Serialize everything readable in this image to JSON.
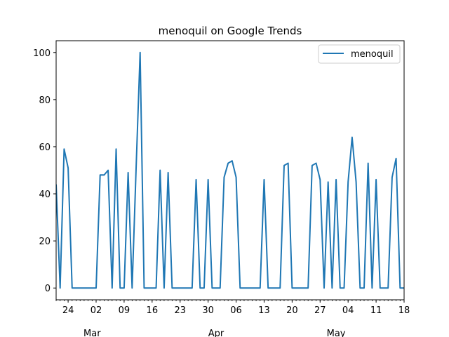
{
  "chart_data": {
    "type": "line",
    "title": "menoquil on Google Trends",
    "xlabel": "",
    "ylabel": "",
    "ylim": [
      -5,
      105
    ],
    "y_ticks": [
      0,
      20,
      40,
      60,
      80,
      100
    ],
    "x_day_ticks": [
      {
        "date": "2024-02-24",
        "label": "24"
      },
      {
        "date": "2024-03-02",
        "label": "02"
      },
      {
        "date": "2024-03-09",
        "label": "09"
      },
      {
        "date": "2024-03-16",
        "label": "16"
      },
      {
        "date": "2024-03-23",
        "label": "23"
      },
      {
        "date": "2024-03-30",
        "label": "30"
      },
      {
        "date": "2024-04-06",
        "label": "06"
      },
      {
        "date": "2024-04-13",
        "label": "13"
      },
      {
        "date": "2024-04-20",
        "label": "20"
      },
      {
        "date": "2024-04-27",
        "label": "27"
      },
      {
        "date": "2024-05-04",
        "label": "04"
      },
      {
        "date": "2024-05-11",
        "label": "11"
      },
      {
        "date": "2024-05-18",
        "label": "18"
      }
    ],
    "x_month_labels": [
      {
        "date": "2024-03-01",
        "label": "Mar"
      },
      {
        "date": "2024-04-01",
        "label": "Apr"
      },
      {
        "date": "2024-05-01",
        "label": "May"
      }
    ],
    "xlim": [
      "2024-02-21",
      "2024-05-18"
    ],
    "legend": {
      "position": "top-right",
      "entries": [
        "menoquil"
      ]
    },
    "grid": false,
    "series": [
      {
        "name": "menoquil",
        "color": "#1f77b4",
        "x": [
          "2024-02-21",
          "2024-02-22",
          "2024-02-23",
          "2024-02-24",
          "2024-02-25",
          "2024-02-26",
          "2024-02-27",
          "2024-02-28",
          "2024-02-29",
          "2024-03-01",
          "2024-03-02",
          "2024-03-03",
          "2024-03-04",
          "2024-03-05",
          "2024-03-06",
          "2024-03-07",
          "2024-03-08",
          "2024-03-09",
          "2024-03-10",
          "2024-03-11",
          "2024-03-12",
          "2024-03-13",
          "2024-03-14",
          "2024-03-15",
          "2024-03-16",
          "2024-03-17",
          "2024-03-18",
          "2024-03-19",
          "2024-03-20",
          "2024-03-21",
          "2024-03-22",
          "2024-03-23",
          "2024-03-24",
          "2024-03-25",
          "2024-03-26",
          "2024-03-27",
          "2024-03-28",
          "2024-03-29",
          "2024-03-30",
          "2024-03-31",
          "2024-04-01",
          "2024-04-02",
          "2024-04-03",
          "2024-04-04",
          "2024-04-05",
          "2024-04-06",
          "2024-04-07",
          "2024-04-08",
          "2024-04-09",
          "2024-04-10",
          "2024-04-11",
          "2024-04-12",
          "2024-04-13",
          "2024-04-14",
          "2024-04-15",
          "2024-04-16",
          "2024-04-17",
          "2024-04-18",
          "2024-04-19",
          "2024-04-20",
          "2024-04-21",
          "2024-04-22",
          "2024-04-23",
          "2024-04-24",
          "2024-04-25",
          "2024-04-26",
          "2024-04-27",
          "2024-04-28",
          "2024-04-29",
          "2024-04-30",
          "2024-05-01",
          "2024-05-02",
          "2024-05-03",
          "2024-05-04",
          "2024-05-05",
          "2024-05-06",
          "2024-05-07",
          "2024-05-08",
          "2024-05-09",
          "2024-05-10",
          "2024-05-11",
          "2024-05-12",
          "2024-05-13",
          "2024-05-14",
          "2024-05-15",
          "2024-05-16",
          "2024-05-17",
          "2024-05-18"
        ],
        "values": [
          44,
          0,
          59,
          51,
          0,
          0,
          0,
          0,
          0,
          0,
          0,
          48,
          48,
          50,
          0,
          59,
          0,
          0,
          49,
          0,
          51,
          100,
          0,
          0,
          0,
          0,
          50,
          0,
          49,
          0,
          0,
          0,
          0,
          0,
          0,
          46,
          0,
          0,
          46,
          0,
          0,
          0,
          47,
          53,
          54,
          47,
          0,
          0,
          0,
          0,
          0,
          0,
          46,
          0,
          0,
          0,
          0,
          52,
          53,
          0,
          0,
          0,
          0,
          0,
          52,
          53,
          46,
          0,
          45,
          0,
          46,
          0,
          0,
          45,
          64,
          45,
          0,
          0,
          53,
          0,
          46,
          0,
          0,
          0,
          47,
          55,
          0,
          0
        ]
      }
    ]
  }
}
